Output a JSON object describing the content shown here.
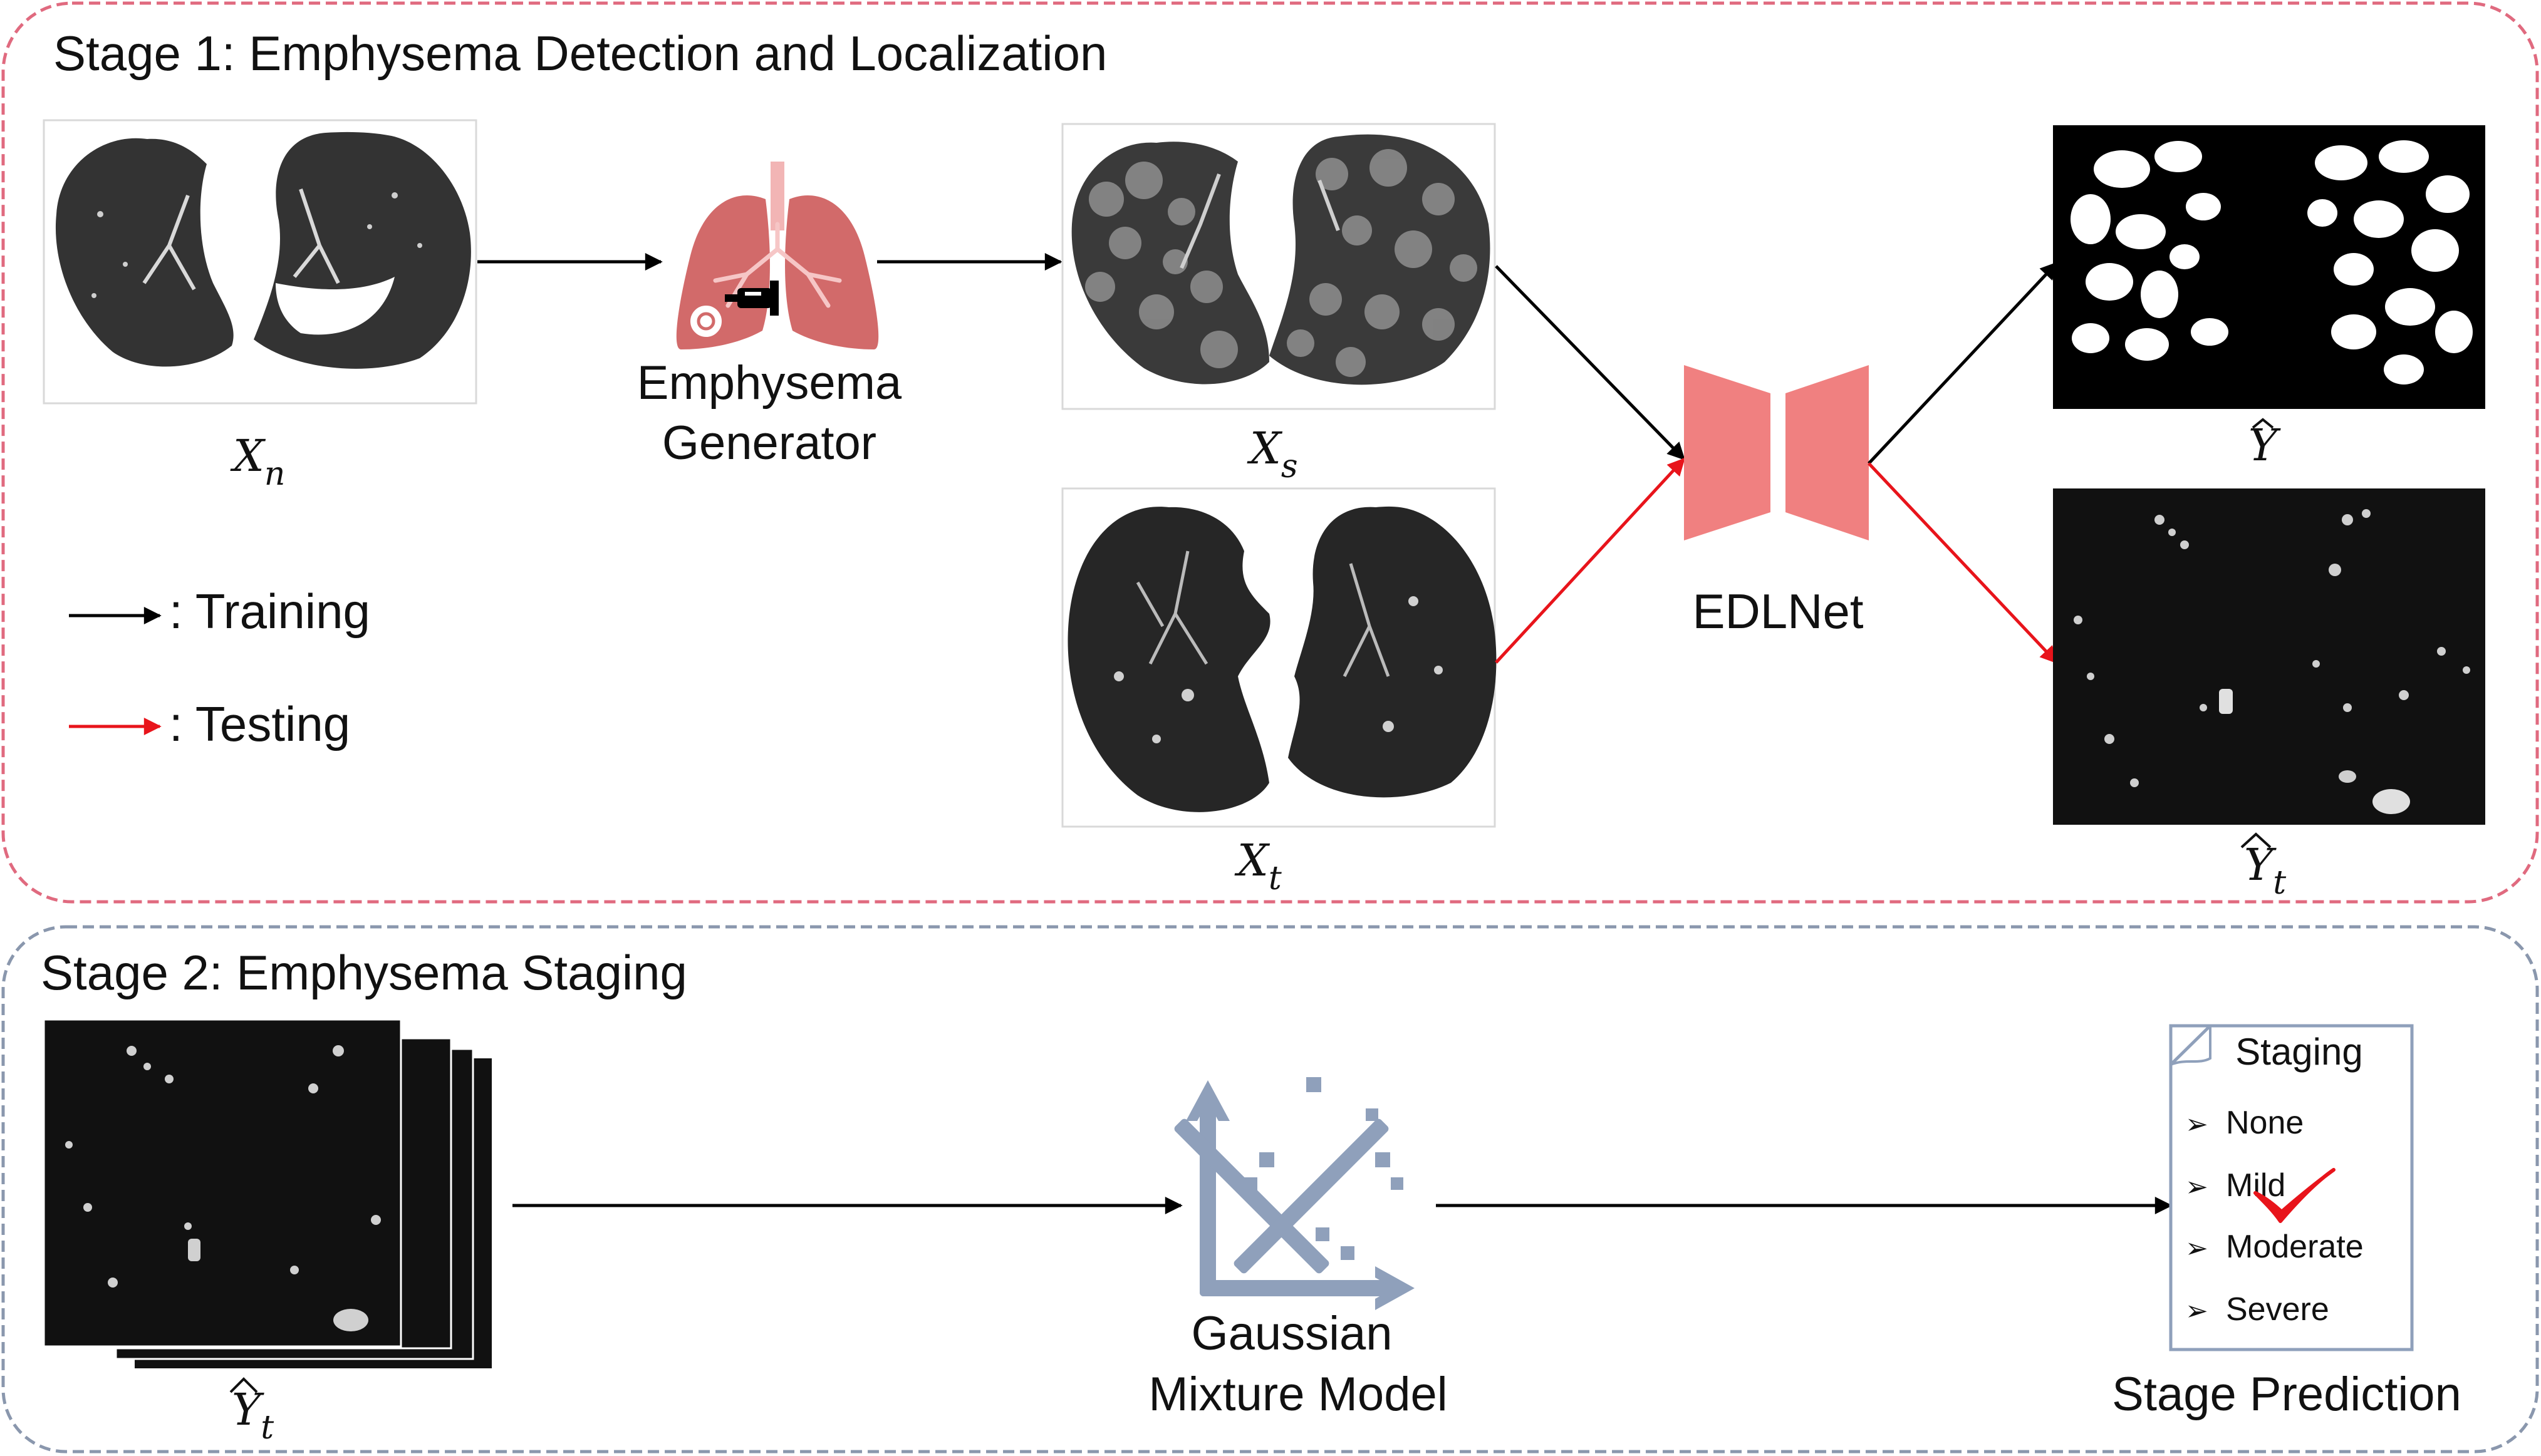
{
  "stage1": {
    "title": "Stage 1: Emphysema Detection and Localization",
    "border_color": "#e06a7f"
  },
  "stage2": {
    "title": "Stage 2: Emphysema Staging",
    "border_color": "#8a97ad"
  },
  "labels": {
    "xn_main": "X",
    "xn_sub": "n",
    "xs_main": "X",
    "xs_sub": "s",
    "xt_main": "X",
    "xt_sub": "t",
    "yhat_main": "Y",
    "yt_main": "Y",
    "yt_sub": "t",
    "yt2_main": "Y",
    "yt2_sub": "t"
  },
  "generator": {
    "line1": "Emphysema",
    "line2": "Generator",
    "icon": "lungs-icon"
  },
  "network": {
    "label": "EDLNet",
    "color": "#f08080"
  },
  "legend": {
    "training": ": Training",
    "testing": ": Testing",
    "training_color": "#000000",
    "testing_color": "#e8141b"
  },
  "gmm": {
    "line1": "Gaussian",
    "line2": "Mixture Model",
    "icon": "scatter-plot-icon",
    "color": "#8fa0bb"
  },
  "staging": {
    "title": "Staging",
    "options": [
      "None",
      "Mild",
      "Moderate",
      "Severe"
    ],
    "selected": "Mild",
    "caption": "Stage Prediction",
    "check_color": "#e8141b"
  }
}
